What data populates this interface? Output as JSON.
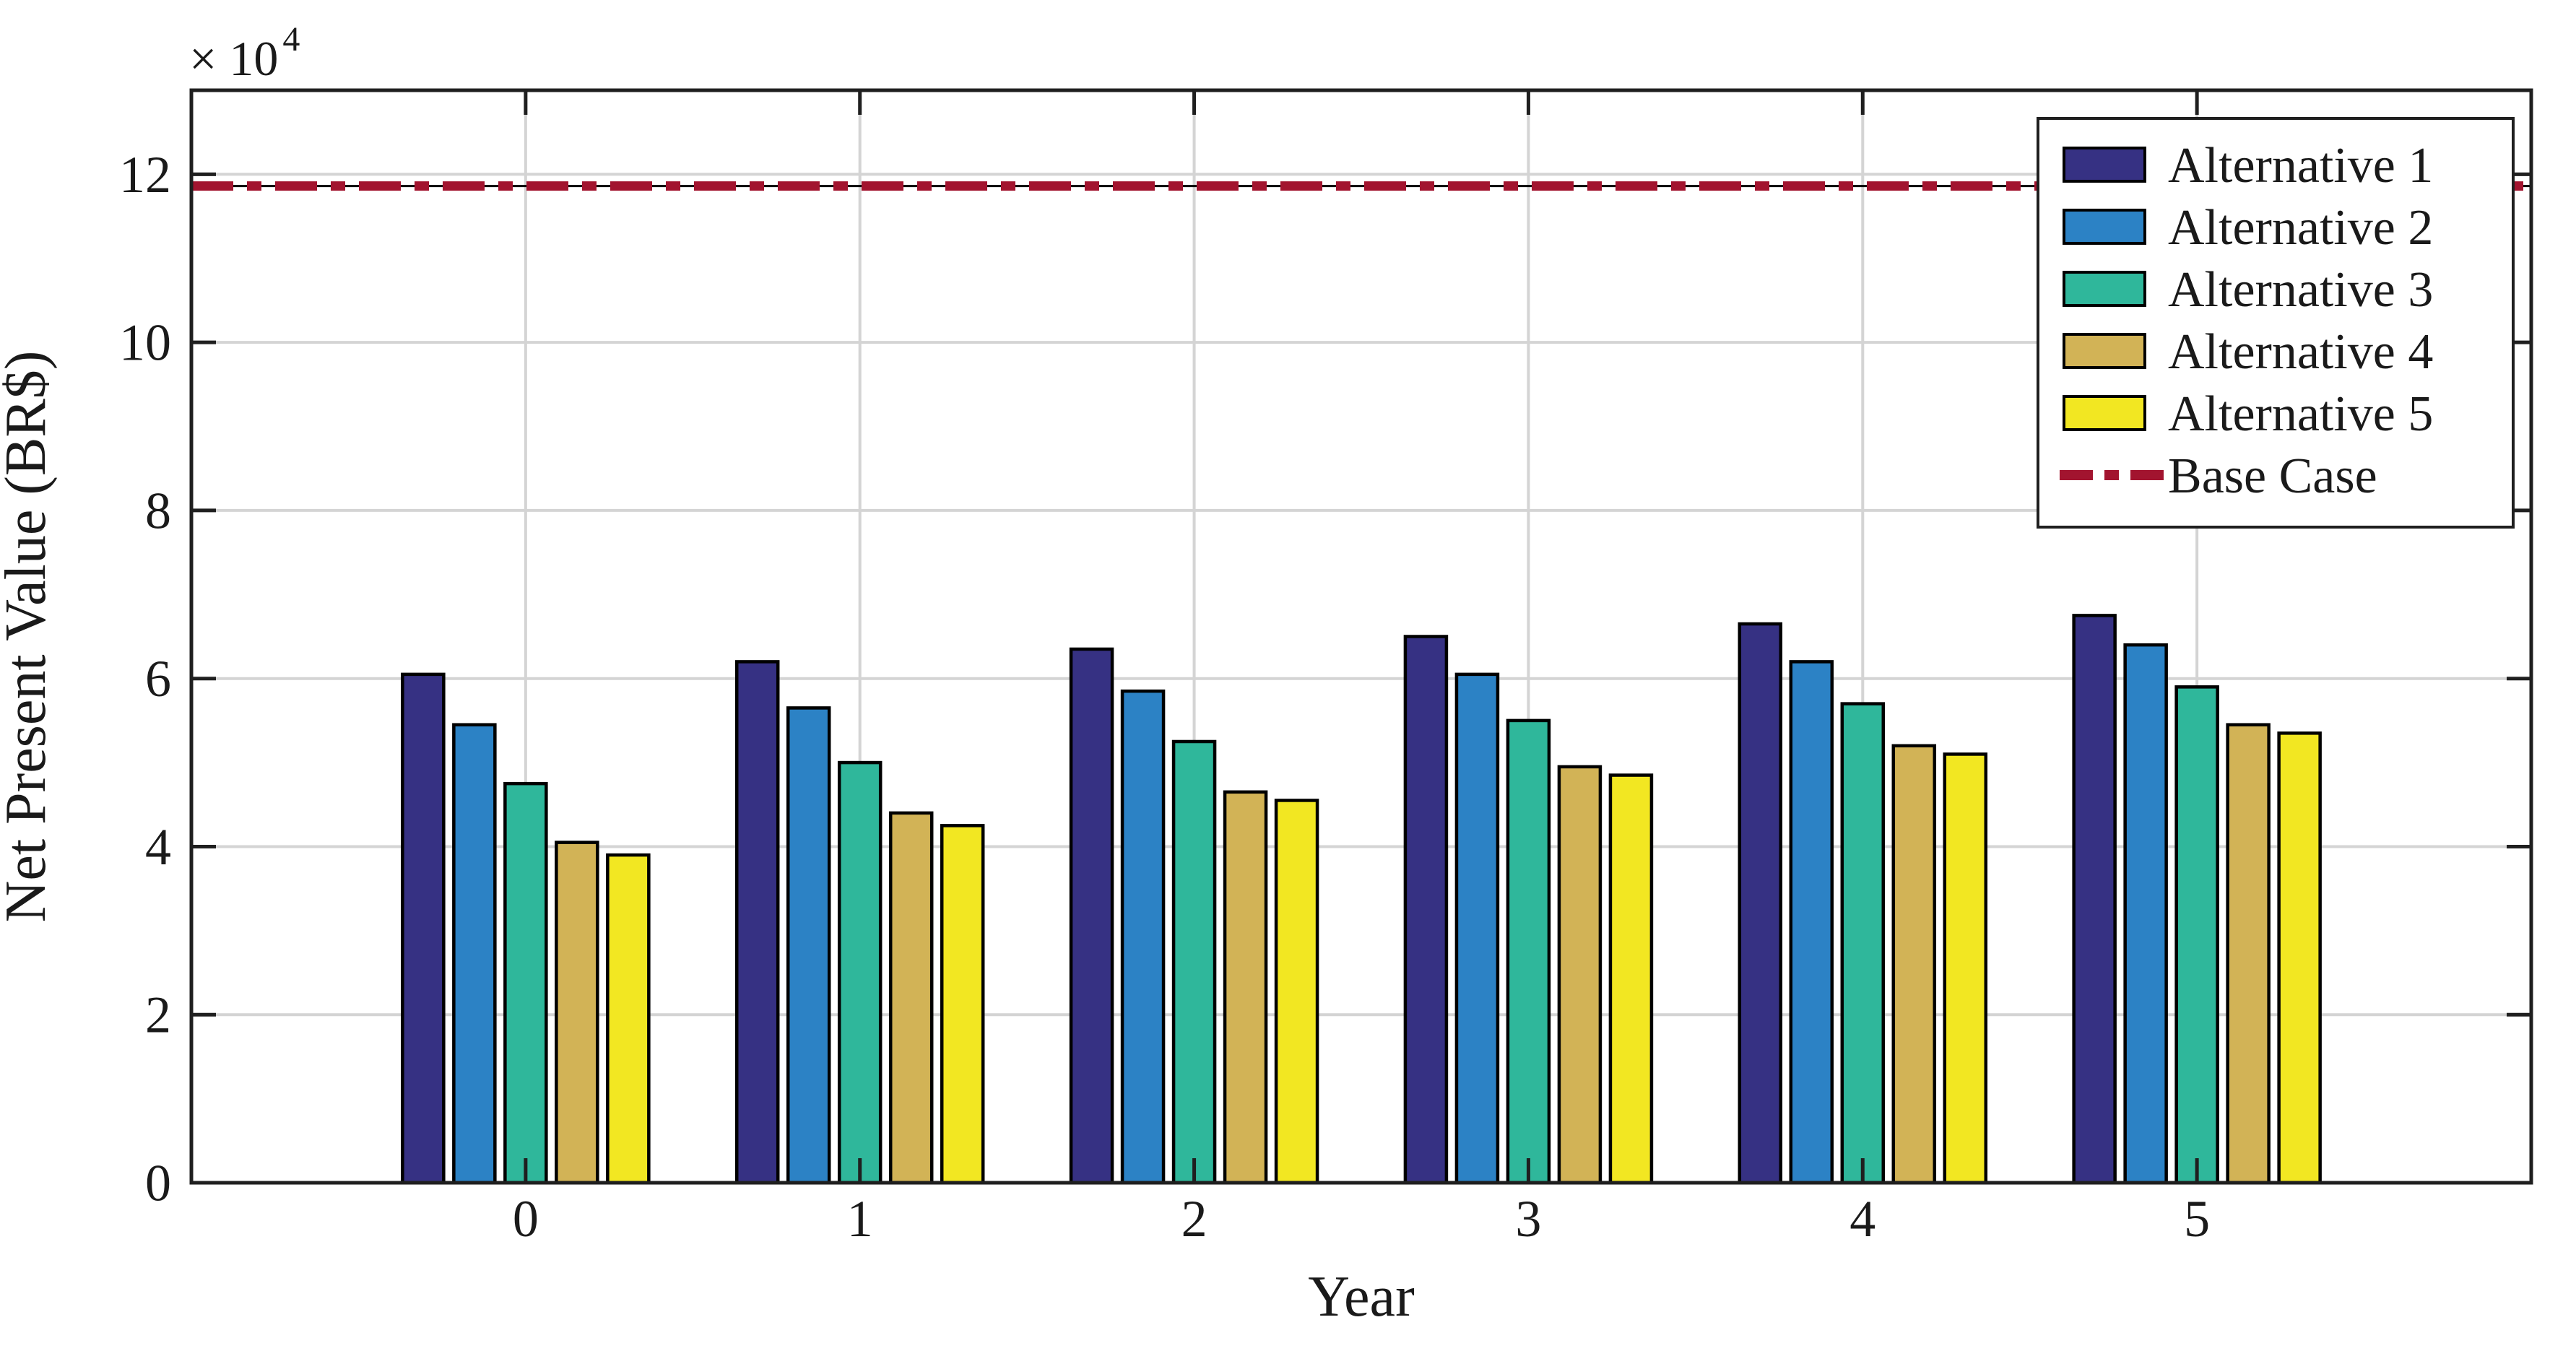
{
  "figure": {
    "background": "#ffffff",
    "axis_color": "#1f1f1f",
    "grid_color": "#d4d4d4",
    "bar_edge_color": "#000000"
  },
  "chart_data": {
    "type": "bar",
    "title": "",
    "xlabel": "Year",
    "ylabel": "Net Present Value (BR$)",
    "y_scale_label": {
      "base": "× 10",
      "exponent": "4"
    },
    "value_unit": "BR$ × 10^4",
    "categories": [
      "0",
      "1",
      "2",
      "3",
      "4",
      "5"
    ],
    "series": [
      {
        "name": "Alternative 1",
        "color": "#363183",
        "values": [
          6.05,
          6.2,
          6.35,
          6.5,
          6.65,
          6.75
        ]
      },
      {
        "name": "Alternative 2",
        "color": "#2C82C5",
        "values": [
          5.45,
          5.65,
          5.85,
          6.05,
          6.2,
          6.4
        ]
      },
      {
        "name": "Alternative 3",
        "color": "#2FB79B",
        "values": [
          4.75,
          5.0,
          5.25,
          5.5,
          5.7,
          5.9
        ]
      },
      {
        "name": "Alternative 4",
        "color": "#D2B356",
        "values": [
          4.05,
          4.4,
          4.65,
          4.95,
          5.2,
          5.45
        ]
      },
      {
        "name": "Alternative 5",
        "color": "#F2E722",
        "values": [
          3.9,
          4.25,
          4.55,
          4.85,
          5.1,
          5.35
        ]
      }
    ],
    "base_case": {
      "name": "Base Case",
      "value": 11.86,
      "color": "#A2142F",
      "line_style": "dash-dot"
    },
    "ylim": [
      0,
      13
    ],
    "yticks": [
      "0",
      "2",
      "4",
      "6",
      "8",
      "10",
      "12"
    ],
    "ytick_values": [
      0,
      2,
      4,
      6,
      8,
      10,
      12
    ],
    "grid": true,
    "legend_position": "top-right",
    "legend_entries": [
      "Alternative 1",
      "Alternative 2",
      "Alternative 3",
      "Alternative 4",
      "Alternative 5",
      "Base Case"
    ]
  }
}
